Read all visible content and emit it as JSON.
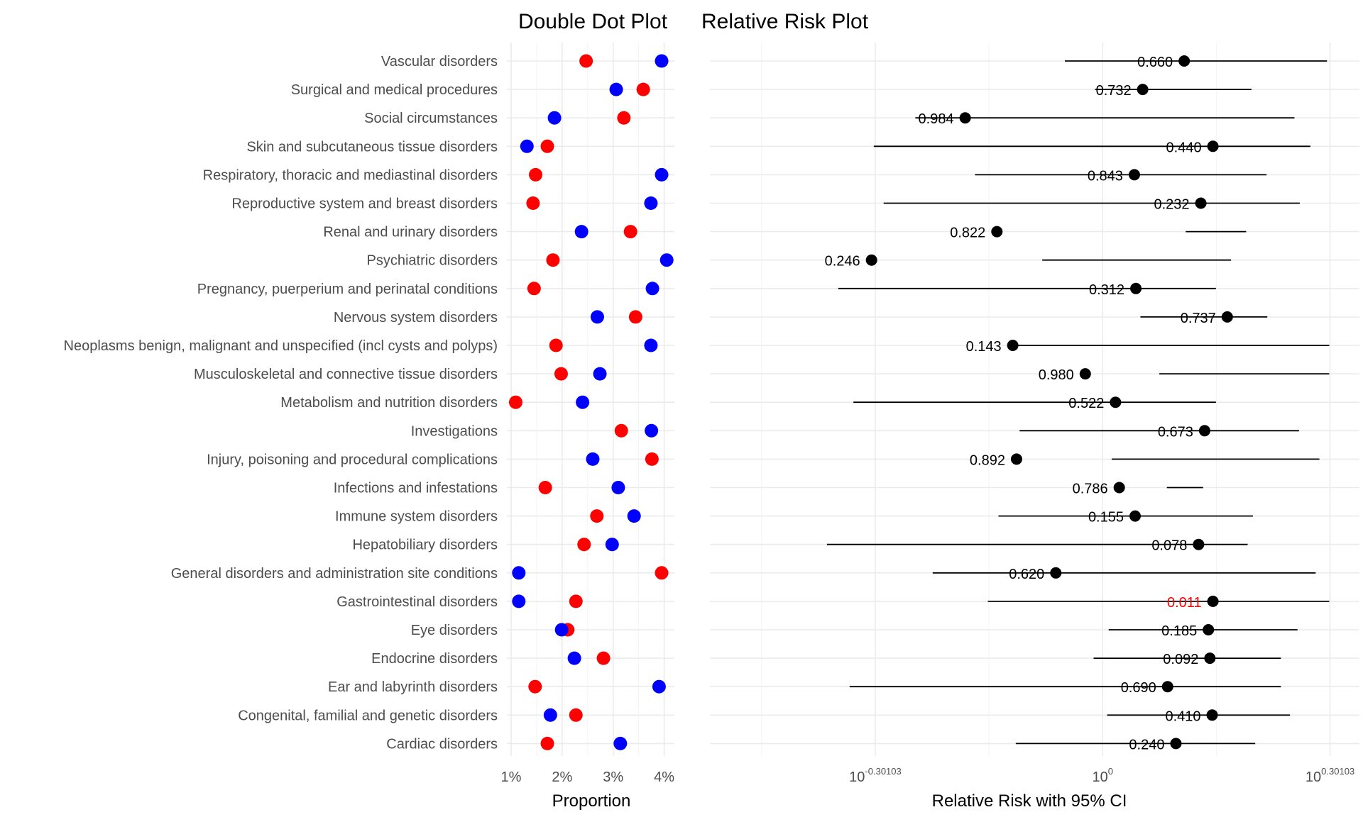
{
  "chart_data": [
    {
      "type": "scatter",
      "title": "Double Dot Plot",
      "xlabel": "Proportion",
      "ylabel": "",
      "xlim": [
        0.01,
        0.04
      ],
      "x_ticks": [
        "1%",
        "2%",
        "3%",
        "4%"
      ],
      "x_tick_values": [
        0.01,
        0.02,
        0.03,
        0.04
      ],
      "categories": [
        "Vascular disorders",
        "Surgical and medical procedures",
        "Social circumstances",
        "Skin and subcutaneous tissue disorders",
        "Respiratory, thoracic and mediastinal disorders",
        "Reproductive system and breast disorders",
        "Renal and urinary disorders",
        "Psychiatric disorders",
        "Pregnancy, puerperium and perinatal conditions",
        "Nervous system disorders",
        "Neoplasms benign, malignant and unspecified (incl cysts and polyps)",
        "Musculoskeletal and connective tissue disorders",
        "Metabolism and nutrition disorders",
        "Investigations",
        "Injury, poisoning and procedural complications",
        "Infections and infestations",
        "Immune system disorders",
        "Hepatobiliary disorders",
        "General disorders and administration site conditions",
        "Gastrointestinal disorders",
        "Eye disorders",
        "Endocrine disorders",
        "Ear and labyrinth disorders",
        "Congenital, familial and genetic disorders",
        "Cardiac disorders"
      ],
      "series": [
        {
          "color": "#ff0000",
          "values": [
            0.0247,
            0.0359,
            0.0321,
            0.0171,
            0.0148,
            0.0143,
            0.0334,
            0.0182,
            0.0145,
            0.0344,
            0.0188,
            0.0198,
            0.0109,
            0.0316,
            0.0376,
            0.0167,
            0.0268,
            0.0243,
            0.0395,
            0.0227,
            0.0211,
            0.0281,
            0.0147,
            0.0227,
            0.0171
          ]
        },
        {
          "color": "#0000ff",
          "values": [
            0.0395,
            0.0306,
            0.0185,
            0.0131,
            0.0395,
            0.0374,
            0.0238,
            0.0405,
            0.0377,
            0.0269,
            0.0374,
            0.0274,
            0.024,
            0.0375,
            0.026,
            0.031,
            0.0341,
            0.0298,
            0.0115,
            0.0115,
            0.0199,
            0.0224,
            0.039,
            0.0177,
            0.0314
          ]
        }
      ]
    },
    {
      "type": "scatter",
      "title": "Relative Risk Plot",
      "xlabel": "Relative Risk with 95% CI",
      "ylabel": "",
      "x_scale": "log2",
      "xlim_log2": [
        -0.52,
        0.34
      ],
      "x_ticks": [
        {
          "base": "10",
          "exp": "-0.30103",
          "log2": -0.30103
        },
        {
          "base": "10",
          "exp": "0",
          "log2": 0
        },
        {
          "base": "10",
          "exp": "0.30103",
          "log2": 0.30103
        }
      ],
      "point_color": "#000000",
      "highlight_color": "#ff0000",
      "rows": [
        {
          "log2_rr": 0.108,
          "ci": [
            -0.05,
            0.297
          ],
          "p": "0.660",
          "highlight": false
        },
        {
          "log2_rr": 0.053,
          "ci": [
            -0.01,
            0.197
          ],
          "p": "0.732",
          "highlight": false
        },
        {
          "log2_rr": -0.182,
          "ci": [
            -0.248,
            0.254
          ],
          "p": "0.984",
          "highlight": false
        },
        {
          "log2_rr": 0.146,
          "ci": [
            -0.303,
            0.275
          ],
          "p": "0.440",
          "highlight": false
        },
        {
          "log2_rr": 0.042,
          "ci": [
            -0.169,
            0.217
          ],
          "p": "0.843",
          "highlight": false
        },
        {
          "log2_rr": 0.13,
          "ci": [
            -0.29,
            0.261
          ],
          "p": "0.232",
          "highlight": false
        },
        {
          "log2_rr": -0.14,
          "ci": [
            0.11,
            0.19
          ],
          "p": "0.822",
          "highlight": false
        },
        {
          "log2_rr": -0.306,
          "ci": [
            -0.08,
            0.17
          ],
          "p": "0.246",
          "highlight": false
        },
        {
          "log2_rr": 0.044,
          "ci": [
            -0.35,
            0.15
          ],
          "p": "0.312",
          "highlight": false
        },
        {
          "log2_rr": 0.165,
          "ci": [
            0.05,
            0.218
          ],
          "p": "0.737",
          "highlight": false
        },
        {
          "log2_rr": -0.119,
          "ci": [
            -0.119,
            0.3
          ],
          "p": "0.143",
          "highlight": false
        },
        {
          "log2_rr": -0.023,
          "ci": [
            0.075,
            0.3
          ],
          "p": "0.980",
          "highlight": false
        },
        {
          "log2_rr": 0.017,
          "ci": [
            -0.33,
            0.15
          ],
          "p": "0.522",
          "highlight": false
        },
        {
          "log2_rr": 0.135,
          "ci": [
            -0.11,
            0.26
          ],
          "p": "0.673",
          "highlight": false
        },
        {
          "log2_rr": -0.114,
          "ci": [
            0.012,
            0.287
          ],
          "p": "0.892",
          "highlight": false
        },
        {
          "log2_rr": 0.022,
          "ci": [
            0.085,
            0.133
          ],
          "p": "0.786",
          "highlight": false
        },
        {
          "log2_rr": 0.043,
          "ci": [
            -0.138,
            0.199
          ],
          "p": "0.155",
          "highlight": false
        },
        {
          "log2_rr": 0.127,
          "ci": [
            -0.365,
            0.192
          ],
          "p": "0.078",
          "highlight": false
        },
        {
          "log2_rr": -0.062,
          "ci": [
            -0.225,
            0.282
          ],
          "p": "0.620",
          "highlight": false
        },
        {
          "log2_rr": 0.146,
          "ci": [
            -0.152,
            0.3
          ],
          "p": "0.011",
          "highlight": true
        },
        {
          "log2_rr": 0.14,
          "ci": [
            0.008,
            0.258
          ],
          "p": "0.185",
          "highlight": false
        },
        {
          "log2_rr": 0.142,
          "ci": [
            -0.012,
            0.236
          ],
          "p": "0.092",
          "highlight": false
        },
        {
          "log2_rr": 0.086,
          "ci": [
            -0.335,
            0.236
          ],
          "p": "0.690",
          "highlight": false
        },
        {
          "log2_rr": 0.145,
          "ci": [
            0.006,
            0.248
          ],
          "p": "0.410",
          "highlight": false
        },
        {
          "log2_rr": 0.097,
          "ci": [
            -0.115,
            0.202
          ],
          "p": "0.240",
          "highlight": false
        }
      ]
    }
  ]
}
